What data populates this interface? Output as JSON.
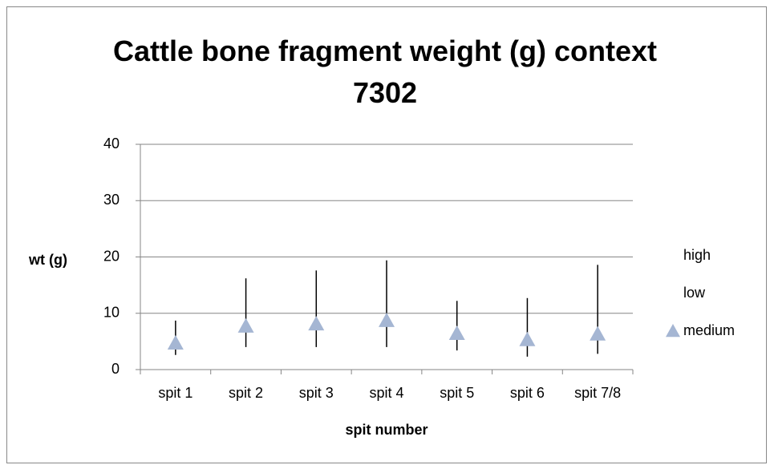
{
  "chart_data": {
    "type": "stock",
    "title": "Cattle bone fragment weight (g) context 7302",
    "x_label": "spit number",
    "y_label": "wt (g)",
    "categories": [
      "spit 1",
      "spit 2",
      "spit 3",
      "spit 4",
      "spit 5",
      "spit 6",
      "spit 7/8"
    ],
    "series": [
      {
        "name": "high",
        "color": "#000000",
        "values": [
          8.7,
          16.2,
          17.6,
          19.4,
          12.2,
          12.7,
          18.6
        ]
      },
      {
        "name": "low",
        "color": "#000000",
        "values": [
          2.6,
          4.0,
          4.0,
          4.0,
          3.4,
          2.3,
          2.8
        ]
      },
      {
        "name": "medium",
        "color": "#a5b6d3",
        "values": [
          4.7,
          7.7,
          8.1,
          8.7,
          6.4,
          5.3,
          6.3
        ]
      }
    ],
    "ylim": [
      0,
      40
    ],
    "yticks": [
      0,
      10,
      20,
      30,
      40
    ],
    "grid": true,
    "legend": "right"
  }
}
